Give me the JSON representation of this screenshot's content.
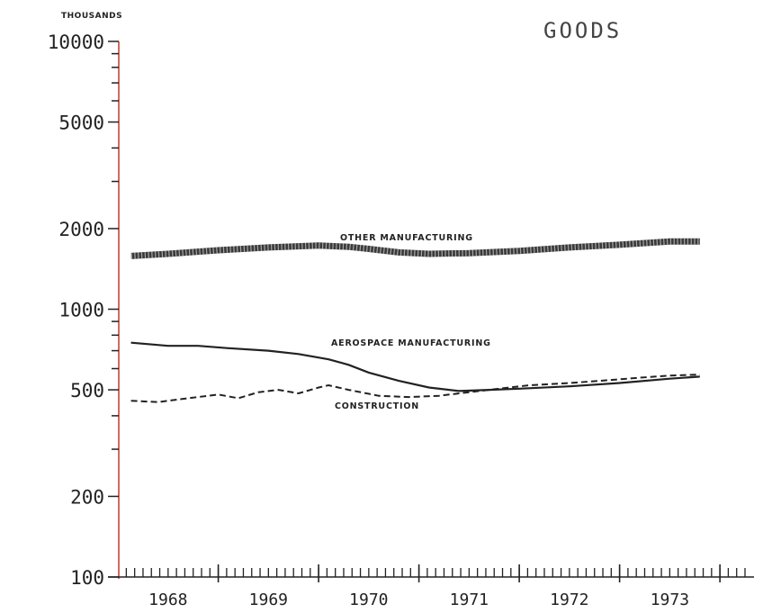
{
  "chart_data": {
    "type": "line",
    "title": "GOODS",
    "unit_label": "THOUSANDS",
    "y_scale": "log",
    "ylim": [
      100,
      10000
    ],
    "y_ticks": [
      {
        "value": 10000,
        "label": "10000"
      },
      {
        "value": 5000,
        "label": "5000"
      },
      {
        "value": 2000,
        "label": "2000"
      },
      {
        "value": 1000,
        "label": "1000"
      },
      {
        "value": 500,
        "label": "500"
      },
      {
        "value": 200,
        "label": "200"
      },
      {
        "value": 100,
        "label": "100"
      }
    ],
    "x_ticks": [
      "1968",
      "1969",
      "1970",
      "1971",
      "1972",
      "1973"
    ],
    "xlim": [
      1967.58,
      1973.75
    ],
    "grid": false,
    "series": [
      {
        "name": "OTHER MANUFACTURING",
        "style": "thick-hatched",
        "color": "#3a3a3a",
        "x": [
          1967.63,
          1968.0,
          1968.5,
          1969.0,
          1969.5,
          1969.8,
          1970.0,
          1970.3,
          1970.6,
          1971.0,
          1971.5,
          1972.0,
          1972.5,
          1973.0,
          1973.3
        ],
        "y": [
          1580,
          1610,
          1660,
          1700,
          1730,
          1710,
          1680,
          1630,
          1610,
          1620,
          1650,
          1700,
          1740,
          1790,
          1790
        ]
      },
      {
        "name": "AEROSPACE MANUFACTURING",
        "style": "solid",
        "color": "#222222",
        "x": [
          1967.63,
          1968.0,
          1968.3,
          1968.6,
          1969.0,
          1969.3,
          1969.6,
          1969.8,
          1970.0,
          1970.3,
          1970.6,
          1970.9,
          1971.2,
          1971.5,
          1972.0,
          1972.5,
          1973.0,
          1973.3
        ],
        "y": [
          750,
          730,
          730,
          715,
          700,
          680,
          650,
          620,
          580,
          540,
          510,
          495,
          500,
          505,
          515,
          530,
          550,
          560
        ]
      },
      {
        "name": "CONSTRUCTION",
        "style": "dashed",
        "color": "#222222",
        "x": [
          1967.63,
          1967.9,
          1968.1,
          1968.5,
          1968.7,
          1968.9,
          1969.1,
          1969.3,
          1969.5,
          1969.6,
          1969.8,
          1970.1,
          1970.4,
          1970.7,
          1971.0,
          1971.3,
          1971.6,
          1972.0,
          1972.3,
          1972.7,
          1973.0,
          1973.3
        ],
        "y": [
          455,
          450,
          460,
          480,
          465,
          490,
          500,
          485,
          510,
          520,
          500,
          475,
          470,
          475,
          490,
          505,
          520,
          530,
          540,
          555,
          565,
          570
        ]
      }
    ],
    "annotations": [
      {
        "text": "OTHER MANUFACTURING",
        "series": "OTHER MANUFACTURING"
      },
      {
        "text": "AEROSPACE MANUFACTURING",
        "series": "AEROSPACE MANUFACTURING"
      },
      {
        "text": "CONSTRUCTION",
        "series": "CONSTRUCTION"
      }
    ]
  }
}
